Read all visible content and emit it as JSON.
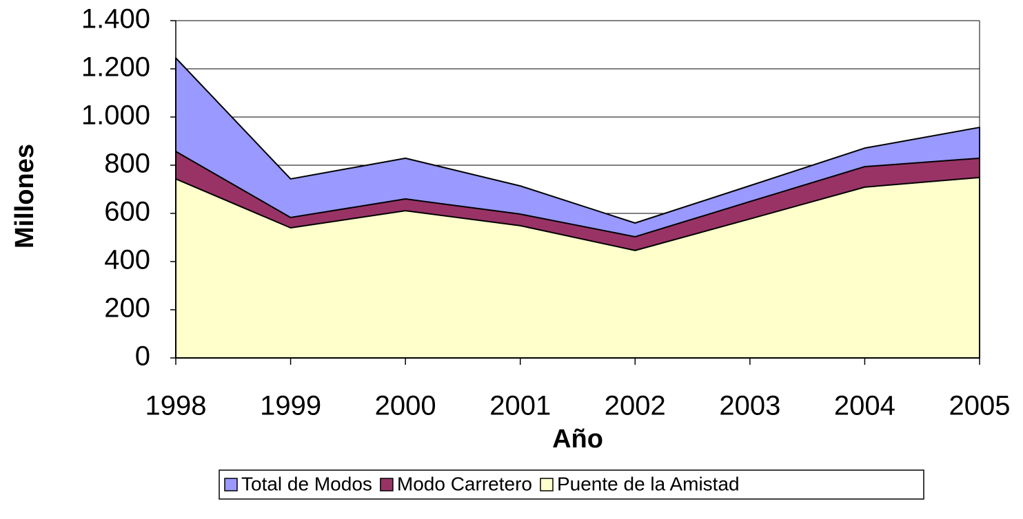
{
  "chart_data": {
    "type": "area",
    "x_label": "Año",
    "y_label": "Millones",
    "categories": [
      "1998",
      "1999",
      "2000",
      "2001",
      "2002",
      "2003",
      "2004",
      "2005"
    ],
    "series": [
      {
        "name": "Total de Modos",
        "color": "#9999ff",
        "values": [
          1245,
          743,
          829,
          714,
          560,
          715,
          871,
          957
        ]
      },
      {
        "name": "Modo Carretero",
        "color": "#993366",
        "values": [
          857,
          583,
          660,
          597,
          503,
          649,
          794,
          829
        ]
      },
      {
        "name": "Puente de la Amistad",
        "color": "#ffffcc",
        "values": [
          743,
          540,
          611,
          549,
          446,
          577,
          709,
          749
        ]
      }
    ],
    "ylim": [
      0,
      1400
    ],
    "yticks": [
      0,
      200,
      400,
      600,
      800,
      {
        "value": 1000,
        "label": "1.000"
      },
      {
        "value": 1200,
        "label": "1.200"
      },
      {
        "value": 1400,
        "label": "1.400"
      }
    ],
    "grid": true,
    "legend": "bottom"
  }
}
